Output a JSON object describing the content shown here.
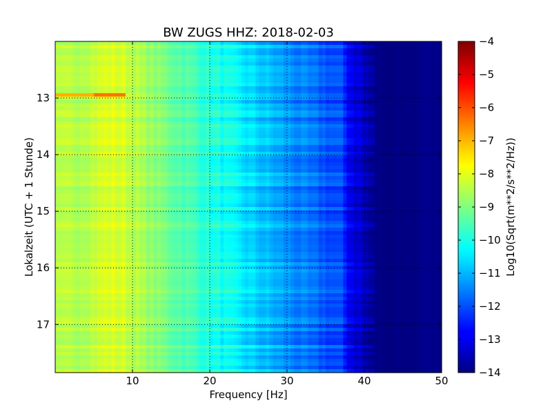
{
  "chart_data": {
    "type": "heatmap",
    "title": "BW ZUGS HHZ: 2018-02-03",
    "xlabel": "Frequency [Hz]",
    "ylabel": "Lokalzeit (UTC + 1 Stunde)",
    "xlim": [
      0,
      50
    ],
    "ylim": [
      17.85,
      12.0
    ],
    "y_inverted": true,
    "xticks": [
      10,
      20,
      30,
      40,
      50
    ],
    "yticks": [
      13,
      14,
      15,
      16,
      17
    ],
    "grid": true,
    "colormap": "jet",
    "colorbar": {
      "label": "Log10(Sqrt(m**2/s**2/Hz))",
      "range": [
        -14,
        -4
      ],
      "ticks": [
        -4,
        -5,
        -6,
        -7,
        -8,
        -9,
        -10,
        -11,
        -12,
        -13,
        -14
      ]
    },
    "frequency_profile": {
      "frequency_hz": [
        0,
        2,
        5,
        7,
        9,
        11,
        13,
        15,
        18,
        20,
        23,
        25,
        28,
        30,
        33,
        35,
        37,
        38,
        39,
        40,
        41,
        42,
        50
      ],
      "log10_level": [
        -8.6,
        -8.5,
        -8.3,
        -8.1,
        -8.2,
        -8.6,
        -8.9,
        -9.2,
        -9.6,
        -9.9,
        -10.3,
        -10.6,
        -11.0,
        -11.3,
        -11.7,
        -11.9,
        -12.1,
        -12.8,
        -13.1,
        -13.4,
        -13.8,
        -14.0,
        -14.0
      ]
    },
    "features": [
      {
        "time": 12.95,
        "freq_range": [
          0,
          9
        ],
        "log10_level": -7.0
      }
    ]
  }
}
